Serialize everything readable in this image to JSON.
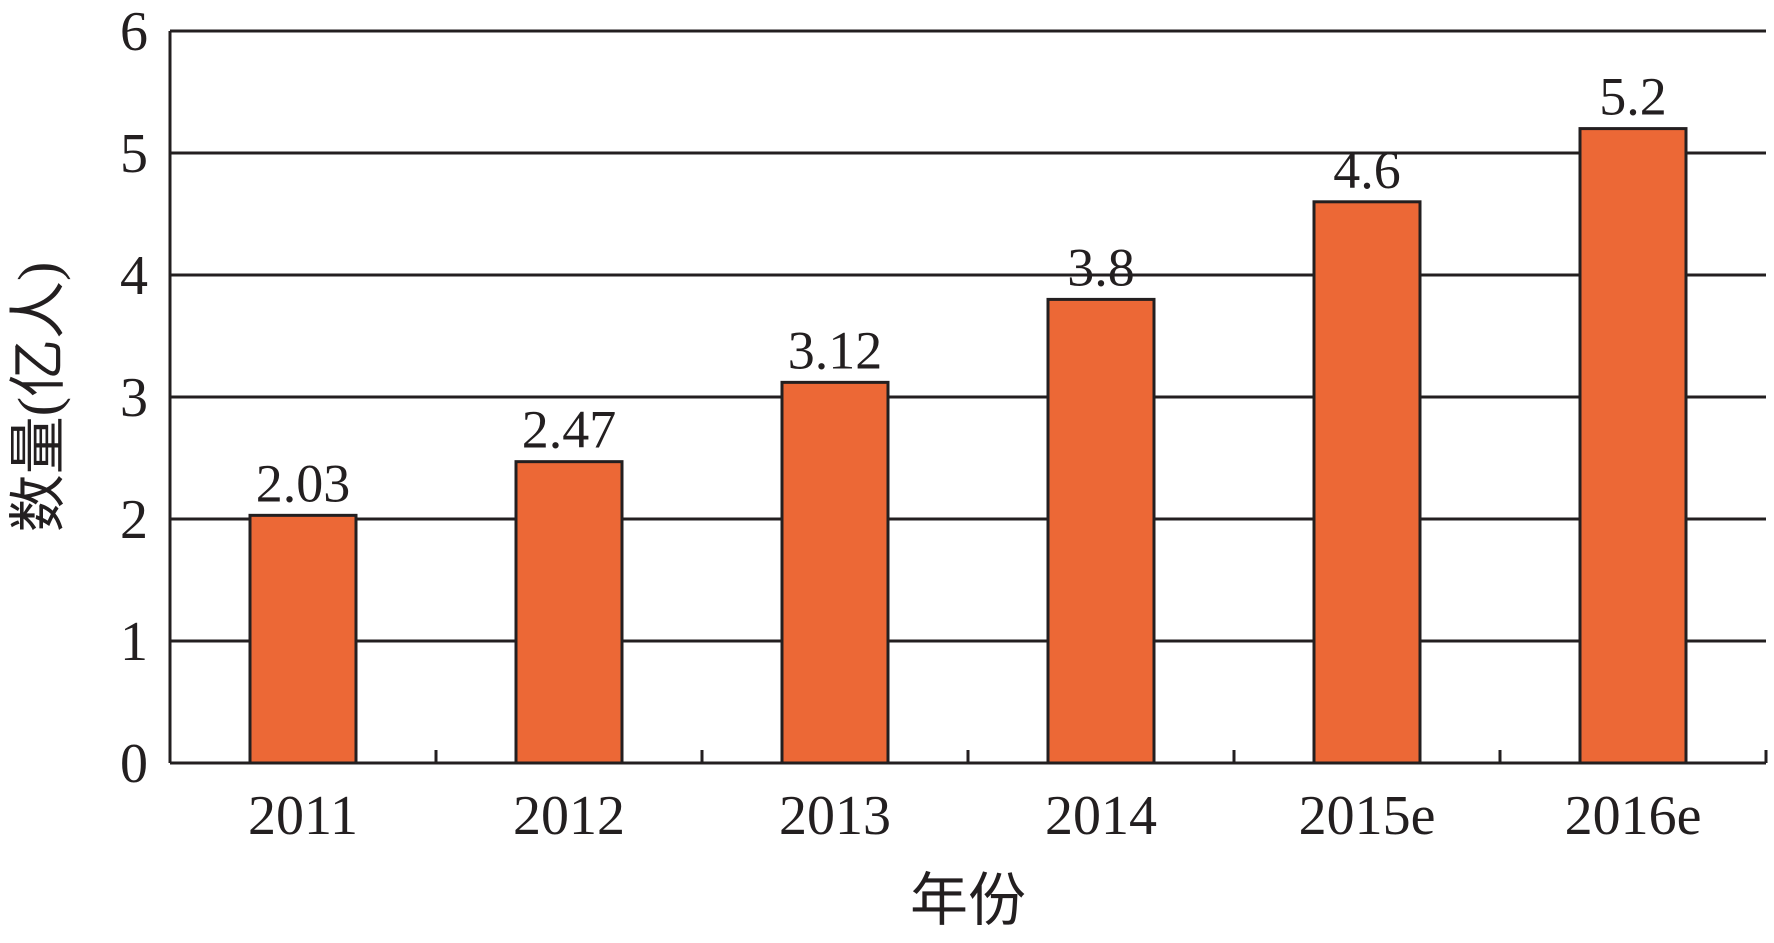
{
  "chart_data": {
    "type": "bar",
    "categories": [
      "2011",
      "2012",
      "2013",
      "2014",
      "2015e",
      "2016e"
    ],
    "values": [
      2.03,
      2.47,
      3.12,
      3.8,
      4.6,
      5.2
    ],
    "data_labels": [
      "2.03",
      "2.47",
      "3.12",
      "3.8",
      "4.6",
      "5.2"
    ],
    "yticks": [
      "0",
      "1",
      "2",
      "3",
      "4",
      "5",
      "6"
    ],
    "ylim": [
      0,
      6
    ],
    "xlabel": "年份",
    "ylabel": "数量(亿人)",
    "title": "",
    "grid": true,
    "legend": "none",
    "colors": {
      "bar": "#ec6836",
      "outline": "#231f20",
      "grid": "#231f20",
      "text": "#231f20"
    }
  }
}
